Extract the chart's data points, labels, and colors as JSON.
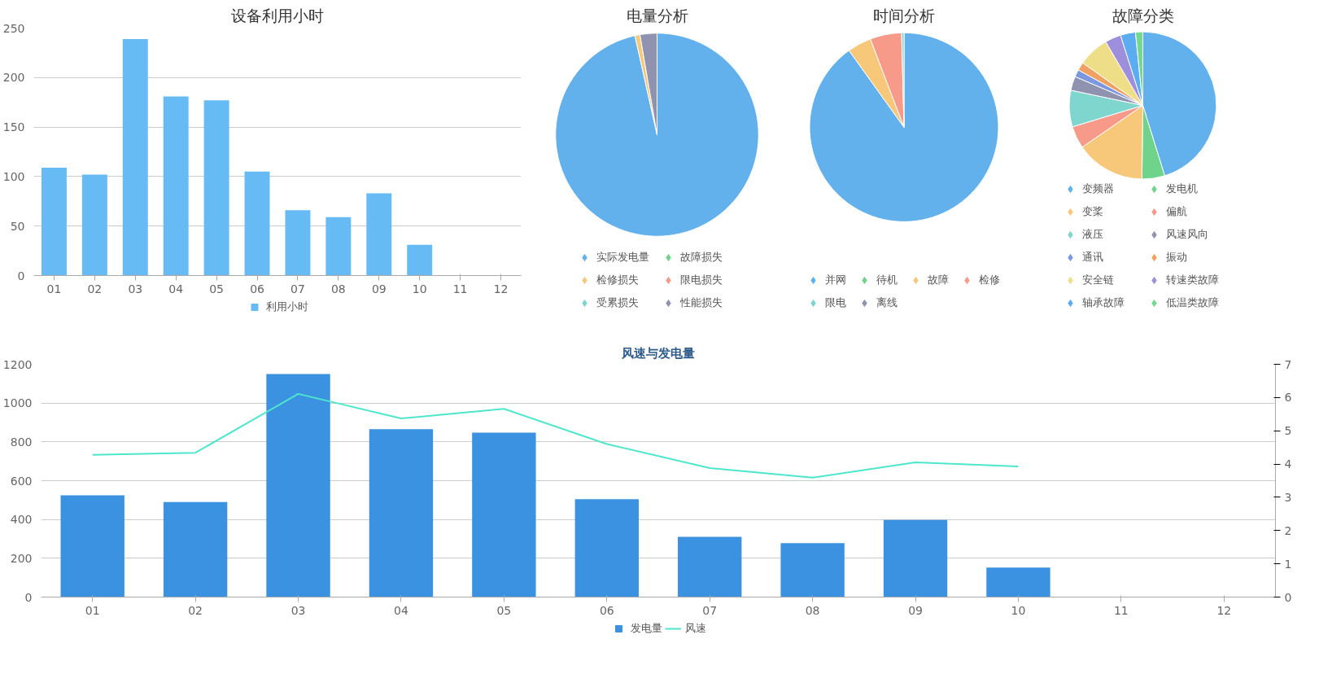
{
  "chart_data": [
    {
      "type": "bar",
      "title": "设备利用小时",
      "categories": [
        "01",
        "02",
        "03",
        "04",
        "05",
        "06",
        "07",
        "08",
        "09",
        "10",
        "11",
        "12"
      ],
      "series": [
        {
          "name": "利用小时",
          "color": "#66bbf5",
          "values": [
            109,
            102,
            239,
            181,
            177,
            105,
            66,
            59,
            83,
            31,
            null,
            null
          ]
        }
      ],
      "ylim": [
        0,
        250
      ],
      "yticks": [
        0,
        50,
        100,
        150,
        200,
        250
      ],
      "grid": "y",
      "legend": "bottom"
    },
    {
      "type": "pie",
      "title": "电量分析",
      "categories": [
        "实际发电量",
        "故障损失",
        "检修损失",
        "限电损失",
        "受累损失",
        "性能损失"
      ],
      "values": [
        96.5,
        0,
        0.8,
        0,
        0,
        2.7
      ],
      "colors": [
        "#62b0ec",
        "#6fd38b",
        "#f7c87a",
        "#f79a8a",
        "#7ed6cf",
        "#9093b0"
      ],
      "legend": "bottom"
    },
    {
      "type": "pie",
      "title": "时间分析",
      "categories": [
        "并网",
        "待机",
        "故障",
        "检修",
        "限电",
        "离线"
      ],
      "values": [
        90.1,
        0,
        4.1,
        5.4,
        0.4,
        0
      ],
      "colors": [
        "#62b0ec",
        "#6fd38b",
        "#f7c87a",
        "#f79a8a",
        "#7ed6cf",
        "#9093b0"
      ],
      "legend": "bottom"
    },
    {
      "type": "pie",
      "title": "故障分类",
      "categories": [
        "变频器",
        "发电机",
        "变桨",
        "偏航",
        "液压",
        "风速风向",
        "通讯",
        "振动",
        "安全链",
        "转速类故障",
        "轴承故障",
        "低温类故障"
      ],
      "values": [
        45.2,
        5,
        15.2,
        4.9,
        8,
        3.1,
        1.6,
        1.8,
        6.8,
        3.5,
        3.3,
        1.6
      ],
      "colors": [
        "#62b0ec",
        "#6fd38b",
        "#f7c87a",
        "#f79a8a",
        "#7ed6cf",
        "#9093b0",
        "#7b97e0",
        "#f0a060",
        "#eede88",
        "#9d8fdc",
        "#5bacf0",
        "#75d890"
      ],
      "legend": "bottom"
    },
    {
      "type": "bar",
      "title": "风速与发电量",
      "categories": [
        "01",
        "02",
        "03",
        "04",
        "05",
        "06",
        "07",
        "08",
        "09",
        "10",
        "11",
        "12"
      ],
      "series": [
        {
          "name": "发电量",
          "type": "bar",
          "color": "#3a92e0",
          "values": [
            525,
            490,
            1150,
            865,
            848,
            505,
            310,
            278,
            398,
            152,
            null,
            null
          ]
        },
        {
          "name": "风速",
          "type": "line",
          "axis": "y2",
          "color": "#4ee6cc",
          "values": [
            4.28,
            4.34,
            6.11,
            5.37,
            5.66,
            4.6,
            3.88,
            3.59,
            4.05,
            3.93,
            null,
            null
          ]
        }
      ],
      "ylim": [
        0,
        1200
      ],
      "yticks": [
        0,
        200,
        400,
        600,
        800,
        1000,
        1200
      ],
      "y2lim": [
        0,
        7
      ],
      "y2ticks": [
        0,
        1,
        2,
        3,
        4,
        5,
        6,
        7
      ],
      "grid": "y",
      "legend": "bottom"
    }
  ]
}
